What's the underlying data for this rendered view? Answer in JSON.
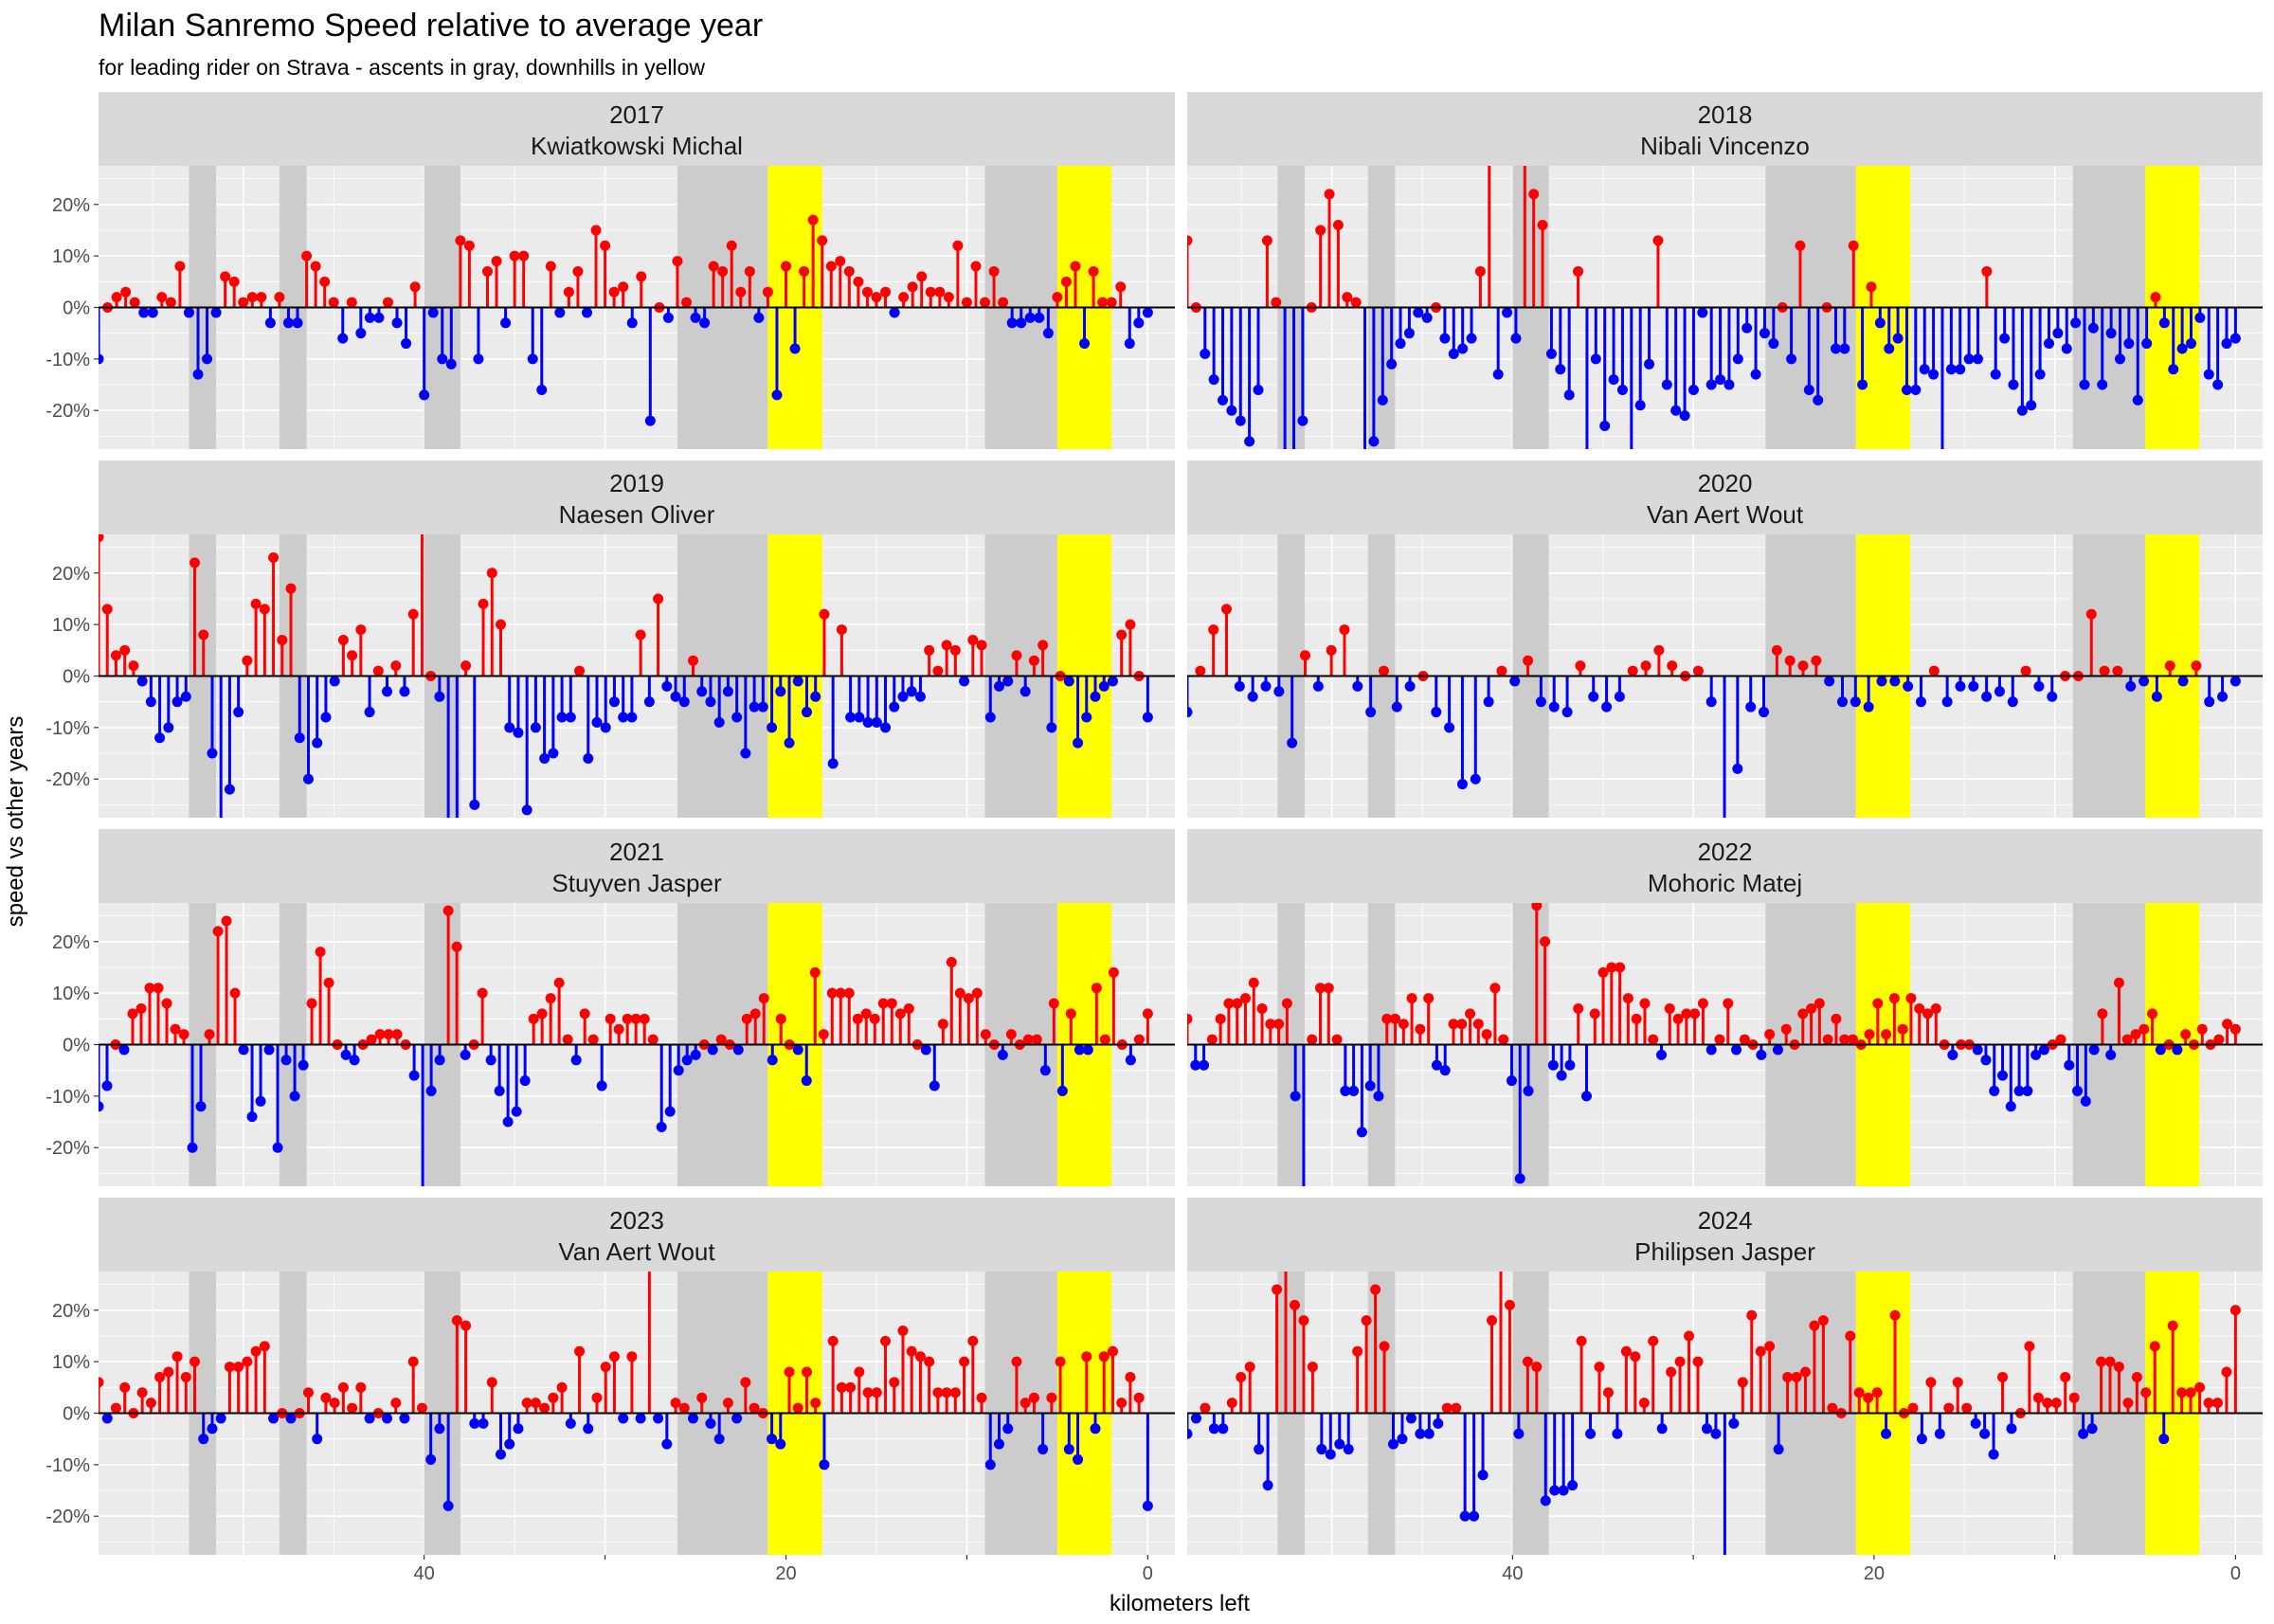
{
  "chart_data": {
    "type": "lollipop",
    "title": "Milan Sanremo Speed relative to average year",
    "subtitle": "for leading rider on Strava - ascents in gray, downhills in yellow",
    "xlabel": "kilometers left",
    "ylabel": "speed vs other years",
    "x_ticks": [
      40,
      20,
      0
    ],
    "y_ticks": [
      "20%",
      "10%",
      "0%",
      "-10%",
      "-20%"
    ],
    "colors": {
      "positive": "#ff0000",
      "negative": "#0000ff",
      "ascent": "#cccccc",
      "downhill": "#ffff00",
      "panel": "#ebebeb",
      "strip": "#d9d9d9"
    },
    "ascents_km": [
      [
        53,
        51.5
      ],
      [
        48,
        46.5
      ],
      [
        40,
        38
      ],
      [
        26,
        21
      ],
      [
        9,
        5
      ]
    ],
    "downhills_km": [
      [
        21,
        18
      ],
      [
        5,
        2
      ]
    ],
    "panels": [
      {
        "year": "2017",
        "rider": "Kwiatkowski Michal",
        "values": [
          -10,
          0,
          2,
          3,
          1,
          -1,
          -1,
          2,
          1,
          8,
          -1,
          -13,
          -10,
          -1,
          6,
          5,
          1,
          2,
          2,
          -3,
          2,
          -3,
          -3,
          10,
          8,
          5,
          1,
          -6,
          1,
          -5,
          -2,
          -2,
          1,
          -3,
          -7,
          4,
          -17,
          -1,
          -10,
          -11,
          13,
          12,
          -10,
          7,
          9,
          -3,
          10,
          10,
          -10,
          -16,
          8,
          -1,
          3,
          7,
          -1,
          15,
          12,
          3,
          4,
          -3,
          6,
          -22,
          0,
          -2,
          9,
          1,
          -2,
          -3,
          8,
          7,
          12,
          3,
          7,
          -2,
          3,
          -17,
          8,
          -8,
          7,
          17,
          13,
          8,
          9,
          7,
          5,
          3,
          2,
          3,
          -1,
          2,
          4,
          6,
          3,
          3,
          2,
          12,
          1,
          8,
          1,
          7,
          1,
          -3,
          -3,
          -2,
          -2,
          -5,
          2,
          5,
          8,
          -7,
          7,
          1,
          1,
          4,
          -7,
          -3,
          -1
        ]
      },
      {
        "year": "2018",
        "rider": "Nibali Vincenzo",
        "values": [
          13,
          0,
          -9,
          -14,
          -18,
          -20,
          -22,
          -26,
          -16,
          13,
          1,
          -30,
          -30,
          -22,
          0,
          15,
          22,
          16,
          2,
          1,
          -30,
          -26,
          -18,
          -11,
          -7,
          -5,
          -1,
          -2,
          0,
          -6,
          -9,
          -8,
          -6,
          7,
          30,
          -13,
          -1,
          -6,
          30,
          22,
          16,
          -9,
          -12,
          -17,
          7,
          -30,
          -10,
          -23,
          -14,
          -16,
          -30,
          -19,
          -11,
          13,
          -15,
          -20,
          -21,
          -16,
          -1,
          -15,
          -14,
          -15,
          -10,
          -4,
          -13,
          -5,
          -7,
          0,
          -10,
          12,
          -16,
          -18,
          0,
          -8,
          -8,
          12,
          -15,
          4,
          -3,
          -8,
          -6,
          -16,
          -16,
          -12,
          -13,
          -30,
          -12,
          -12,
          -10,
          -10,
          7,
          -13,
          -6,
          -15,
          -20,
          -19,
          -13,
          -7,
          -5,
          -8,
          -3,
          -15,
          -4,
          -15,
          -5,
          -10,
          -7,
          -18,
          -7,
          2,
          -3,
          -12,
          -8,
          -7,
          -2,
          -13,
          -15,
          -7,
          -6
        ]
      },
      {
        "year": "2019",
        "rider": "Naesen Oliver",
        "values": [
          27,
          13,
          4,
          5,
          2,
          -1,
          -5,
          -12,
          -10,
          -5,
          -4,
          22,
          8,
          -15,
          -28,
          -22,
          -7,
          3,
          14,
          13,
          23,
          7,
          17,
          -12,
          -20,
          -13,
          -8,
          -1,
          7,
          4,
          9,
          -7,
          1,
          -3,
          2,
          -3,
          12,
          30,
          0,
          -4,
          -30,
          -30,
          2,
          -25,
          14,
          20,
          10,
          -10,
          -11,
          -26,
          -10,
          -16,
          -15,
          -8,
          -8,
          1,
          -16,
          -9,
          -10,
          -5,
          -8,
          -8,
          8,
          -5,
          15,
          -2,
          -4,
          -5,
          3,
          -3,
          -5,
          -9,
          -3,
          -8,
          -15,
          -6,
          -6,
          -10,
          -3,
          -13,
          -1,
          -7,
          -4,
          12,
          -17,
          9,
          -8,
          -8,
          -9,
          -9,
          -10,
          -6,
          -4,
          -3,
          -4,
          5,
          1,
          6,
          5,
          -1,
          7,
          6,
          -8,
          -2,
          -1,
          4,
          -3,
          3,
          6,
          -10,
          0,
          -1,
          -13,
          -8,
          -4,
          -2,
          -1,
          8,
          10,
          0,
          -8
        ]
      },
      {
        "year": "2020",
        "rider": "Van Aert Wout",
        "values": [
          -7,
          1,
          9,
          13,
          -2,
          -4,
          -2,
          -3,
          -13,
          4,
          -2,
          5,
          9,
          -2,
          -7,
          1,
          -6,
          -2,
          0,
          -7,
          -10,
          -21,
          -20,
          -5,
          1,
          -1,
          3,
          -5,
          -6,
          -7,
          2,
          -4,
          -6,
          -4,
          1,
          2,
          5,
          2,
          0,
          1,
          -5,
          -28,
          -18,
          -6,
          -7,
          5,
          3,
          2,
          3,
          -1,
          -5,
          -5,
          -6,
          -1,
          -1,
          -2,
          -5,
          1,
          -5,
          -2,
          -2,
          -4,
          -3,
          -5,
          1,
          -2,
          -4,
          0,
          0,
          12,
          1,
          1,
          -2,
          -1,
          -4,
          2,
          -1,
          2,
          -5,
          -4,
          -1
        ]
      },
      {
        "year": "2021",
        "rider": "Stuyven Jasper",
        "values": [
          -12,
          -8,
          0,
          -1,
          6,
          7,
          11,
          11,
          8,
          3,
          2,
          -20,
          -12,
          2,
          22,
          24,
          10,
          -1,
          -14,
          -11,
          -1,
          -20,
          -3,
          -10,
          -4,
          8,
          18,
          12,
          0,
          -2,
          -3,
          0,
          1,
          2,
          2,
          2,
          0,
          -6,
          -28,
          -9,
          -3,
          26,
          19,
          -2,
          0,
          10,
          -3,
          -9,
          -15,
          -13,
          -7,
          5,
          6,
          9,
          12,
          1,
          -3,
          6,
          1,
          -8,
          5,
          3,
          5,
          5,
          5,
          1,
          -16,
          -13,
          -5,
          -3,
          -2,
          0,
          -1,
          1,
          0,
          -1,
          5,
          6,
          9,
          -3,
          5,
          0,
          -1,
          -7,
          14,
          2,
          10,
          10,
          10,
          5,
          6,
          5,
          8,
          8,
          6,
          7,
          0,
          -1,
          -8,
          4,
          16,
          10,
          9,
          10,
          2,
          0,
          -2,
          2,
          0,
          1,
          1,
          -5,
          8,
          -9,
          6,
          -1,
          -1,
          11,
          1,
          14,
          0,
          -3,
          1,
          6
        ]
      },
      {
        "year": "2022",
        "rider": "Mohoric Matej",
        "values": [
          5,
          -4,
          -4,
          1,
          5,
          8,
          8,
          9,
          12,
          7,
          4,
          4,
          8,
          -10,
          -28,
          1,
          11,
          11,
          1,
          -9,
          -9,
          -17,
          -8,
          -10,
          5,
          5,
          4,
          9,
          3,
          9,
          -4,
          -5,
          4,
          4,
          6,
          4,
          2,
          11,
          1,
          -7,
          -26,
          -9,
          27,
          20,
          -4,
          -6,
          -4,
          7,
          -10,
          6,
          14,
          15,
          15,
          9,
          5,
          8,
          1,
          -2,
          7,
          5,
          6,
          6,
          8,
          -1,
          1,
          8,
          -1,
          1,
          0,
          -2,
          2,
          -1,
          3,
          0,
          6,
          7,
          8,
          1,
          5,
          1,
          1,
          0,
          2,
          8,
          2,
          9,
          3,
          9,
          7,
          6,
          7,
          0,
          -2,
          0,
          0,
          -1,
          -3,
          -9,
          -6,
          -12,
          -9,
          -9,
          -2,
          -1,
          0,
          1,
          -4,
          -9,
          -11,
          -1,
          6,
          -2,
          12,
          1,
          2,
          3,
          6,
          -1,
          0,
          -1,
          2,
          0,
          3,
          0,
          1,
          4,
          3
        ]
      },
      {
        "year": "2023",
        "rider": "Van Aert Wout",
        "values": [
          6,
          -1,
          1,
          5,
          0,
          4,
          2,
          7,
          8,
          11,
          7,
          10,
          -5,
          -3,
          -1,
          9,
          9,
          10,
          12,
          13,
          -1,
          0,
          -1,
          0,
          4,
          -5,
          3,
          2,
          5,
          1,
          5,
          -1,
          0,
          -1,
          2,
          -1,
          10,
          1,
          -9,
          -3,
          -18,
          18,
          17,
          -2,
          -2,
          6,
          -8,
          -6,
          -3,
          2,
          2,
          1,
          3,
          5,
          -2,
          12,
          -3,
          3,
          9,
          11,
          -1,
          11,
          -1,
          30,
          -1,
          -6,
          2,
          1,
          -1,
          3,
          -2,
          -5,
          2,
          -1,
          6,
          1,
          0,
          -5,
          -6,
          8,
          1,
          8,
          2,
          -10,
          14,
          5,
          5,
          8,
          4,
          4,
          14,
          6,
          16,
          12,
          11,
          10,
          4,
          4,
          4,
          10,
          14,
          3,
          -10,
          -6,
          -3,
          10,
          2,
          3,
          -7,
          3,
          10,
          -7,
          -9,
          11,
          -3,
          11,
          12,
          2,
          7,
          3,
          -18
        ]
      },
      {
        "year": "2024",
        "rider": "Philipsen Jasper",
        "values": [
          -4,
          -1,
          1,
          -3,
          -3,
          2,
          7,
          9,
          -7,
          -14,
          24,
          30,
          21,
          18,
          9,
          -7,
          -8,
          -6,
          -7,
          12,
          18,
          24,
          13,
          -6,
          -5,
          -1,
          -4,
          -4,
          -2,
          1,
          1,
          -20,
          -20,
          -12,
          18,
          30,
          21,
          -4,
          10,
          9,
          -17,
          -15,
          -15,
          -14,
          14,
          -4,
          9,
          4,
          -4,
          12,
          11,
          2,
          14,
          -3,
          8,
          10,
          15,
          10,
          -3,
          -4,
          -28,
          -2,
          6,
          19,
          12,
          13,
          -7,
          7,
          7,
          8,
          17,
          18,
          1,
          0,
          15,
          4,
          3,
          4,
          -4,
          19,
          0,
          1,
          -5,
          6,
          -4,
          1,
          6,
          1,
          -2,
          -4,
          -8,
          7,
          -3,
          0,
          13,
          3,
          2,
          2,
          7,
          3,
          -4,
          -3,
          10,
          10,
          9,
          2,
          7,
          4,
          13,
          -5,
          17,
          4,
          4,
          5,
          2,
          2,
          8,
          20
        ]
      }
    ]
  }
}
